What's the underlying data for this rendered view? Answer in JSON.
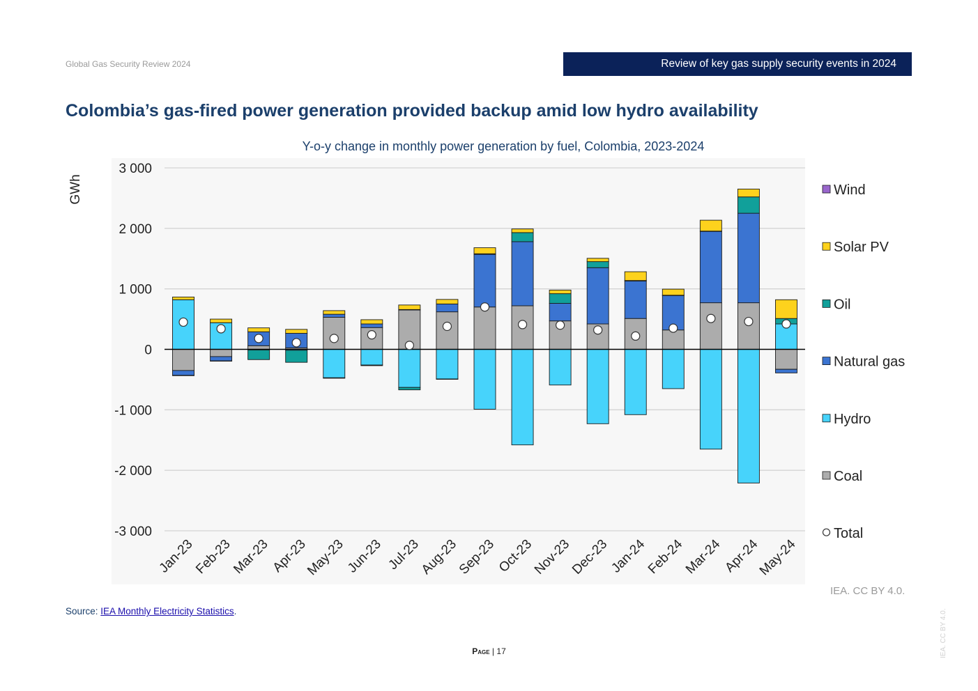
{
  "header": {
    "report_title": "Global Gas Security Review 2024",
    "section_title": "Review of key gas supply security events in 2024"
  },
  "page_title": "Colombia’s gas-fired power generation provided backup amid low hydro availability",
  "colors": {
    "wind": "#9966cc",
    "solar": "#fdd21d",
    "oil": "#11a09a",
    "gas": "#3b74d1",
    "hydro": "#47d3fb",
    "coal": "#acacac",
    "banner": "#0b2259",
    "title": "#1b3f6b"
  },
  "chart_data": {
    "type": "bar",
    "stacked": true,
    "title": "Y-o-y change in monthly power generation by fuel, Colombia, 2023-2024",
    "ylabel": "GWh",
    "xlabel": "",
    "ylim": [
      -3000,
      3000
    ],
    "yticks": [
      3000,
      2000,
      1000,
      0,
      -1000,
      -2000,
      -3000
    ],
    "ytick_labels": [
      "3 000",
      "2 000",
      "1 000",
      "0",
      "-1 000",
      "-2 000",
      "-3 000"
    ],
    "grid": true,
    "legend_position": "right",
    "categories": [
      "Jan-23",
      "Feb-23",
      "Mar-23",
      "Apr-23",
      "May-23",
      "Jun-23",
      "Jul-23",
      "Aug-23",
      "Sep-23",
      "Oct-23",
      "Nov-23",
      "Dec-23",
      "Jan-24",
      "Feb-24",
      "Mar-24",
      "Apr-24",
      "May-24"
    ],
    "series": [
      {
        "name": "Coal",
        "key": "coal",
        "values": [
          -350,
          -120,
          60,
          25,
          530,
          360,
          650,
          620,
          700,
          720,
          470,
          420,
          510,
          320,
          770,
          770,
          -330
        ]
      },
      {
        "name": "Hydro",
        "key": "hydro",
        "values": [
          820,
          440,
          -10,
          -15,
          -470,
          -260,
          -630,
          -490,
          -990,
          -1580,
          -590,
          -1230,
          -1080,
          -650,
          -1650,
          -2210,
          420
        ]
      },
      {
        "name": "Natural gas",
        "key": "gas",
        "values": [
          -80,
          -70,
          230,
          240,
          50,
          60,
          8,
          130,
          870,
          1060,
          290,
          930,
          620,
          570,
          1180,
          1480,
          -60
        ]
      },
      {
        "name": "Oil",
        "key": "oil",
        "values": [
          -5,
          -5,
          -160,
          -200,
          -8,
          -10,
          -40,
          -5,
          10,
          150,
          160,
          100,
          8,
          5,
          5,
          270,
          90
        ]
      },
      {
        "name": "Solar PV",
        "key": "solar",
        "values": [
          45,
          60,
          65,
          65,
          60,
          70,
          75,
          75,
          100,
          60,
          60,
          55,
          145,
          100,
          180,
          130,
          310
        ]
      },
      {
        "name": "Wind",
        "key": "wind",
        "values": [
          0,
          0,
          0,
          0,
          0,
          0,
          0,
          0,
          0,
          0,
          0,
          0,
          0,
          0,
          0,
          0,
          0
        ]
      }
    ],
    "total": {
      "name": "Total",
      "values": [
        450,
        340,
        180,
        110,
        180,
        240,
        65,
        380,
        700,
        410,
        400,
        320,
        220,
        350,
        510,
        460,
        420
      ]
    },
    "legend": [
      "Wind",
      "Solar PV",
      "Oil",
      "Natural gas",
      "Hydro",
      "Coal",
      "Total"
    ]
  },
  "footer": {
    "source_label": "Source: ",
    "source_link": "IEA Monthly Electricity Statistics",
    "source_end": ".",
    "credit": "IEA. CC BY 4.0.",
    "vertical_credit": "IEA. CC BY 4.0.",
    "page_word": "Page",
    "page_sep": " | ",
    "page_number": "17"
  }
}
